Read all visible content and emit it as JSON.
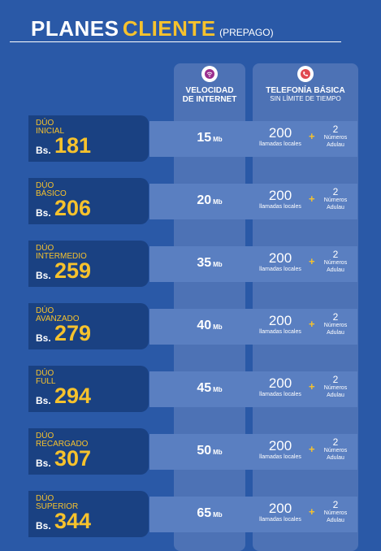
{
  "header": {
    "title_part1": "PLANES",
    "title_part2": "CLIENTE",
    "title_part3": "(PREPAGO)"
  },
  "columns": {
    "speed_header_line1": "VELOCIDAD",
    "speed_header_line2": "DE INTERNET",
    "speed_icon": "wifi-icon",
    "tel_header": "TELEFONÍA BÁSICA",
    "tel_subheader": "SIN LÍMITE DE TIEMPO",
    "tel_icon": "phone-icon"
  },
  "plans": [
    {
      "label1": "DÚO",
      "label2": "INICIAL",
      "currency": "Bs.",
      "price": "181",
      "speed": "15",
      "unit": "Mb",
      "local_calls": "200",
      "local_label": "llamadas locales",
      "numbers": "2",
      "numbers_label": "Números",
      "numbers_sub": "Adulau"
    },
    {
      "label1": "DÚO",
      "label2": "BÁSICO",
      "currency": "Bs.",
      "price": "206",
      "speed": "20",
      "unit": "Mb",
      "local_calls": "200",
      "local_label": "llamadas locales",
      "numbers": "2",
      "numbers_label": "Números",
      "numbers_sub": "Adulau"
    },
    {
      "label1": "DÚO",
      "label2": "INTERMEDIO",
      "currency": "Bs.",
      "price": "259",
      "speed": "35",
      "unit": "Mb",
      "local_calls": "200",
      "local_label": "llamadas locales",
      "numbers": "2",
      "numbers_label": "Números",
      "numbers_sub": "Adulau"
    },
    {
      "label1": "DÚO",
      "label2": "AVANZADO",
      "currency": "Bs.",
      "price": "279",
      "speed": "40",
      "unit": "Mb",
      "local_calls": "200",
      "local_label": "llamadas locales",
      "numbers": "2",
      "numbers_label": "Números",
      "numbers_sub": "Adulau"
    },
    {
      "label1": "DÚO",
      "label2": "FULL",
      "currency": "Bs.",
      "price": "294",
      "speed": "45",
      "unit": "Mb",
      "local_calls": "200",
      "local_label": "llamadas locales",
      "numbers": "2",
      "numbers_label": "Números",
      "numbers_sub": "Adulau"
    },
    {
      "label1": "DÚO",
      "label2": "RECARGADO",
      "currency": "Bs.",
      "price": "307",
      "speed": "50",
      "unit": "Mb",
      "local_calls": "200",
      "local_label": "llamadas locales",
      "numbers": "2",
      "numbers_label": "Números",
      "numbers_sub": "Adulau"
    },
    {
      "label1": "DÚO",
      "label2": "SUPERIOR",
      "currency": "Bs.",
      "price": "344",
      "speed": "65",
      "unit": "Mb",
      "local_calls": "200",
      "local_label": "llamadas locales",
      "numbers": "2",
      "numbers_label": "Números",
      "numbers_sub": "Adulau"
    }
  ],
  "colors": {
    "background": "#2a59a7",
    "plan_box": "#1a4182",
    "column": "#4d72b5",
    "accent": "#f6c22d",
    "icon_accent": "#9a2f8f"
  }
}
